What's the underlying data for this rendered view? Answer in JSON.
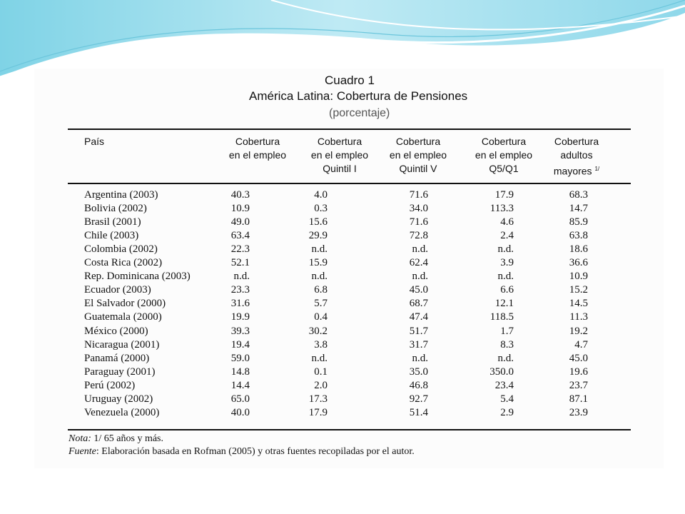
{
  "colors": {
    "accent": "#7fd3e6",
    "accent_light": "#c8eef6",
    "text": "#111111"
  },
  "cuadro": "Cuadro 1",
  "subtitle": "América Latina: Cobertura de Pensiones",
  "unit": "(porcentaje)",
  "headers": {
    "country": "País",
    "col1": [
      "Cobertura",
      "en el empleo"
    ],
    "col2": [
      "Cobertura",
      "en el empleo",
      "Quintil I"
    ],
    "col3": [
      "Cobertura",
      "en el empleo",
      "Quintil V"
    ],
    "col4": [
      "Cobertura",
      "en el empleo",
      "Q5/Q1"
    ],
    "col5": [
      "Cobertura",
      "adultos",
      "mayores"
    ],
    "col5_sup": "1/"
  },
  "rows": [
    [
      "Argentina (2003)",
      "40.3",
      "4.0",
      "71.6",
      "17.9",
      "68.3"
    ],
    [
      "Bolivia (2002)",
      "10.9",
      "0.3",
      "34.0",
      "113.3",
      "14.7"
    ],
    [
      "Brasil (2001)",
      "49.0",
      "15.6",
      "71.6",
      "4.6",
      "85.9"
    ],
    [
      "Chile (2003)",
      "63.4",
      "29.9",
      "72.8",
      "2.4",
      "63.8"
    ],
    [
      "Colombia (2002)",
      "22.3",
      "n.d.",
      "n.d.",
      "n.d.",
      "18.6"
    ],
    [
      "Costa Rica (2002)",
      "52.1",
      "15.9",
      "62.4",
      "3.9",
      "36.6"
    ],
    [
      "Rep. Dominicana (2003)",
      "n.d.",
      "n.d.",
      "n.d.",
      "n.d.",
      "10.9"
    ],
    [
      "Ecuador (2003)",
      "23.3",
      "6.8",
      "45.0",
      "6.6",
      "15.2"
    ],
    [
      "El Salvador (2000)",
      "31.6",
      "5.7",
      "68.7",
      "12.1",
      "14.5"
    ],
    [
      "Guatemala (2000)",
      "19.9",
      "0.4",
      "47.4",
      "118.5",
      "11.3"
    ],
    [
      "México (2000)",
      "39.3",
      "30.2",
      "51.7",
      "1.7",
      "19.2"
    ],
    [
      "Nicaragua (2001)",
      "19.4",
      "3.8",
      "31.7",
      "8.3",
      "4.7"
    ],
    [
      "Panamá (2000)",
      "59.0",
      "n.d.",
      "n.d.",
      "n.d.",
      "45.0"
    ],
    [
      "Paraguay (2001)",
      "14.8",
      "0.1",
      "35.0",
      "350.0",
      "19.6"
    ],
    [
      "Perú (2002)",
      "14.4",
      "2.0",
      "46.8",
      "23.4",
      "23.7"
    ],
    [
      "Uruguay (2002)",
      "65.0",
      "17.3",
      "92.7",
      "5.4",
      "87.1"
    ],
    [
      "Venezuela (2000)",
      "40.0",
      "17.9",
      "51.4",
      "2.9",
      "23.9"
    ]
  ],
  "note_label": "Nota:",
  "note_text": " 1/ 65 años y más.",
  "source_label": "Fuente",
  "source_text": ": Elaboración basada en Rofman (2005) y otras fuentes recopiladas por el autor."
}
